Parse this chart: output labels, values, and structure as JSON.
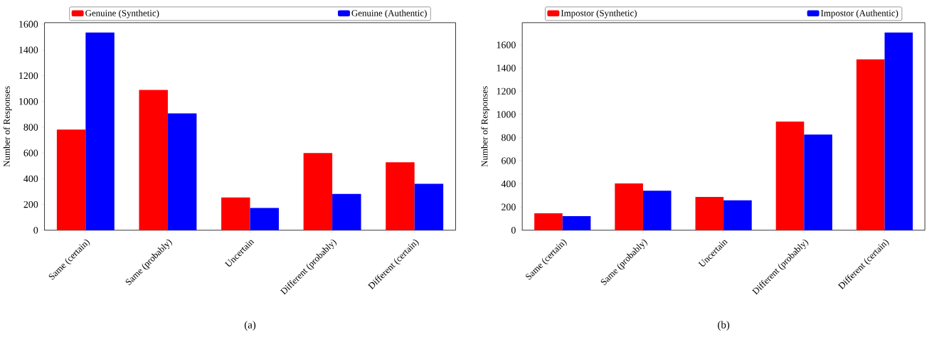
{
  "chart_data": [
    {
      "type": "bar",
      "categories": [
        "Same (certain)",
        "Same (probably)",
        "Uncertain",
        "Different (probably)",
        "Different (certain)"
      ],
      "ylabel": "Number of Responses",
      "ylim": [
        0,
        1612
      ],
      "yticks": [
        0,
        200,
        400,
        600,
        800,
        1000,
        1200,
        1400,
        1600
      ],
      "legend": "top",
      "grid": false,
      "annotations": [
        "(a)"
      ],
      "series": [
        {
          "name": "Genuine (Synthetic)",
          "color": "#ff0000",
          "values": [
            781,
            1089,
            255,
            599,
            528
          ]
        },
        {
          "name": "Genuine (Authentic)",
          "color": "#0000ff",
          "values": [
            1535,
            907,
            173,
            282,
            360
          ]
        }
      ]
    },
    {
      "type": "bar",
      "categories": [
        "Same (certain)",
        "Same (probably)",
        "Uncertain",
        "Different (probably)",
        "Different (certain)"
      ],
      "ylabel": "Number of Responses",
      "ylim": [
        0,
        1792
      ],
      "yticks": [
        0,
        200,
        400,
        600,
        800,
        1000,
        1200,
        1400,
        1600
      ],
      "legend": "top",
      "grid": false,
      "annotations": [
        "(b)"
      ],
      "series": [
        {
          "name": "Impostor (Synthetic)",
          "color": "#ff0000",
          "values": [
            146,
            404,
            287,
            938,
            1475
          ]
        },
        {
          "name": "Impostor (Authentic)",
          "color": "#0000ff",
          "values": [
            122,
            341,
            258,
            826,
            1707
          ]
        }
      ]
    }
  ]
}
